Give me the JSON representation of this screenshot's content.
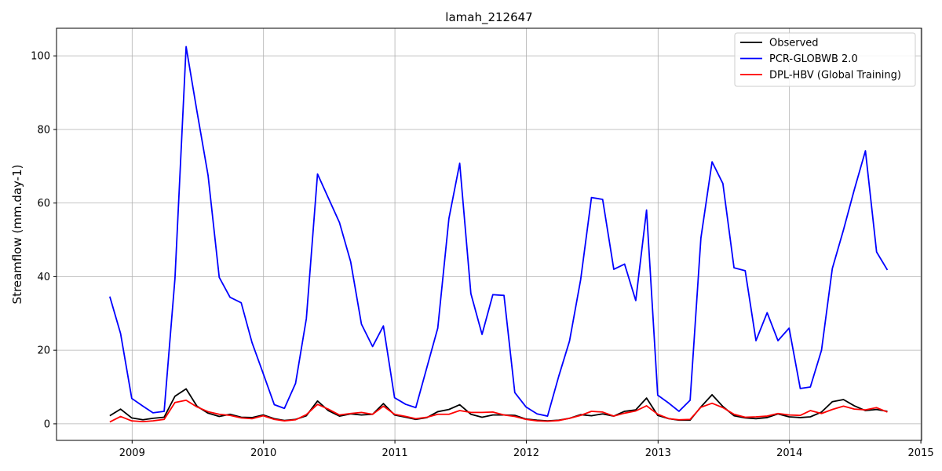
{
  "chart_data": {
    "type": "line",
    "title": "lamah_212647",
    "xlabel": "",
    "ylabel": "Streamflow (mm.day-1)",
    "xlim": [
      "2008-06-05",
      "2015-01-03"
    ],
    "ylim": [
      -4.5,
      107.5
    ],
    "xticks": [
      {
        "date": "2009-01-01",
        "label": "2009"
      },
      {
        "date": "2010-01-01",
        "label": "2010"
      },
      {
        "date": "2011-01-01",
        "label": "2011"
      },
      {
        "date": "2012-01-01",
        "label": "2012"
      },
      {
        "date": "2013-01-01",
        "label": "2013"
      },
      {
        "date": "2014-01-01",
        "label": "2014"
      },
      {
        "date": "2015-01-01",
        "label": "2015"
      }
    ],
    "yticks": [
      0,
      20,
      40,
      60,
      80,
      100
    ],
    "grid": true,
    "legend_position": "top-right",
    "x": [
      "2008-10-31",
      "2008-11-30",
      "2008-12-31",
      "2009-01-31",
      "2009-02-28",
      "2009-03-31",
      "2009-04-30",
      "2009-05-31",
      "2009-06-30",
      "2009-07-31",
      "2009-08-31",
      "2009-09-30",
      "2009-10-31",
      "2009-11-30",
      "2009-12-31",
      "2010-01-31",
      "2010-02-28",
      "2010-03-31",
      "2010-04-30",
      "2010-05-31",
      "2010-06-30",
      "2010-07-31",
      "2010-08-31",
      "2010-09-30",
      "2010-10-31",
      "2010-11-30",
      "2010-12-31",
      "2011-01-31",
      "2011-02-28",
      "2011-03-31",
      "2011-04-30",
      "2011-05-31",
      "2011-06-30",
      "2011-07-31",
      "2011-08-31",
      "2011-09-30",
      "2011-10-31",
      "2011-11-30",
      "2011-12-31",
      "2012-01-31",
      "2012-02-29",
      "2012-03-31",
      "2012-04-30",
      "2012-05-31",
      "2012-06-30",
      "2012-07-31",
      "2012-08-31",
      "2012-09-30",
      "2012-10-31",
      "2012-11-30",
      "2012-12-31",
      "2013-01-31",
      "2013-02-28",
      "2013-03-31",
      "2013-04-30",
      "2013-05-31",
      "2013-06-30",
      "2013-07-31",
      "2013-08-31",
      "2013-09-30",
      "2013-10-31",
      "2013-11-30",
      "2013-12-31",
      "2014-01-31",
      "2014-02-28",
      "2014-03-31",
      "2014-04-30",
      "2014-05-31",
      "2014-06-30",
      "2014-07-31",
      "2014-08-31",
      "2014-09-30"
    ],
    "series": [
      {
        "name": "Observed",
        "color": "#000000",
        "values": [
          2.2,
          4.0,
          1.6,
          1.1,
          1.5,
          1.8,
          7.5,
          9.5,
          4.8,
          2.9,
          2.0,
          2.6,
          1.8,
          1.7,
          2.4,
          1.4,
          0.9,
          1.2,
          2.2,
          6.2,
          3.6,
          2.1,
          2.7,
          2.4,
          2.6,
          5.5,
          2.4,
          1.8,
          1.2,
          1.7,
          3.3,
          3.9,
          5.2,
          2.6,
          1.8,
          2.4,
          2.4,
          2.3,
          1.3,
          1.0,
          0.8,
          1.0,
          1.5,
          2.5,
          2.2,
          2.7,
          2.1,
          3.4,
          3.8,
          7.0,
          2.3,
          1.4,
          1.0,
          1.0,
          4.6,
          7.9,
          4.7,
          2.2,
          1.6,
          1.4,
          1.7,
          2.7,
          1.9,
          1.7,
          1.9,
          3.2,
          6.0,
          6.6,
          4.9,
          3.6,
          3.9,
          3.4
        ]
      },
      {
        "name": "PCR-GLOBWB 2.0",
        "color": "#0000ff",
        "values": [
          34.6,
          24.5,
          6.9,
          4.8,
          3.0,
          3.4,
          39.5,
          102.5,
          85.0,
          67.5,
          39.8,
          34.4,
          32.9,
          22.1,
          13.7,
          5.2,
          4.2,
          11.0,
          28.6,
          67.9,
          61.4,
          54.7,
          44.1,
          27.1,
          21.0,
          26.6,
          7.1,
          5.3,
          4.4,
          15.4,
          26.0,
          55.8,
          70.8,
          35.4,
          24.3,
          35.1,
          34.9,
          8.5,
          4.6,
          2.7,
          2.1,
          12.9,
          22.5,
          39.2,
          61.5,
          61.0,
          42.0,
          43.4,
          33.5,
          58.1,
          7.8,
          5.6,
          3.4,
          6.4,
          50.5,
          71.2,
          65.3,
          42.4,
          41.6,
          22.6,
          30.2,
          22.6,
          26.0,
          9.6,
          10.0,
          20.0,
          42.2,
          52.7,
          63.6,
          74.2,
          46.7,
          41.8
        ]
      },
      {
        "name": "DPL-HBV (Global Training)",
        "color": "#ff0000",
        "values": [
          0.5,
          2.0,
          0.8,
          0.6,
          0.8,
          1.2,
          5.8,
          6.4,
          4.6,
          3.3,
          2.6,
          2.3,
          1.6,
          1.4,
          2.2,
          1.2,
          0.8,
          1.1,
          2.5,
          5.3,
          4.0,
          2.4,
          2.8,
          3.1,
          2.6,
          4.8,
          2.6,
          2.0,
          1.4,
          1.8,
          2.6,
          2.6,
          3.6,
          3.1,
          3.1,
          3.2,
          2.4,
          2.0,
          1.2,
          0.8,
          0.7,
          0.9,
          1.5,
          2.3,
          3.4,
          3.2,
          2.1,
          2.9,
          3.5,
          4.9,
          2.6,
          1.4,
          1.1,
          1.2,
          4.5,
          5.6,
          4.4,
          2.6,
          1.8,
          1.9,
          2.1,
          2.8,
          2.4,
          2.3,
          3.6,
          2.8,
          3.9,
          4.8,
          4.0,
          3.8,
          4.4,
          3.2
        ]
      }
    ]
  }
}
